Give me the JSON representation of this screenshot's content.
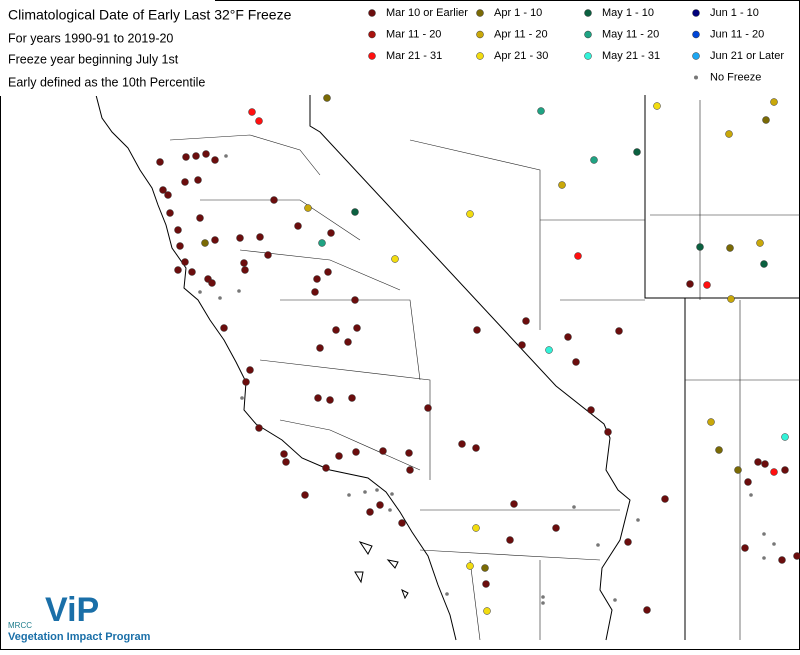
{
  "title_lines": [
    "Climatological Date of Early Last 32°F Freeze",
    "For years 1990-91 to 2019-20",
    "Freeze year beginning July 1st",
    "Early defined as the 10th Percentile"
  ],
  "legend": [
    {
      "label": "Mar 10 or Earlier",
      "color": "#6b0d0d"
    },
    {
      "label": "Mar 11 - 20",
      "color": "#a8120e"
    },
    {
      "label": "Mar 21 - 31",
      "color": "#ff1010"
    },
    {
      "label": "Apr 1 - 10",
      "color": "#7a6a05"
    },
    {
      "label": "Apr 11 - 20",
      "color": "#c9a80a"
    },
    {
      "label": "Apr 21 - 30",
      "color": "#f2dc10"
    },
    {
      "label": "May 1 - 10",
      "color": "#0b6040"
    },
    {
      "label": "May 11 - 20",
      "color": "#1fa383"
    },
    {
      "label": "May 21 - 31",
      "color": "#33f2d8"
    },
    {
      "label": "Jun 1 - 10",
      "color": "#00007a"
    },
    {
      "label": "Jun 11 - 20",
      "color": "#0045d6"
    },
    {
      "label": "Jun 21 or Later",
      "color": "#1ea6f2"
    },
    {
      "label": "No Freeze",
      "color": "#777777"
    }
  ],
  "logo": {
    "org": "MRCC",
    "mark": "ViP",
    "name": "Vegetation Impact Program"
  }
}
